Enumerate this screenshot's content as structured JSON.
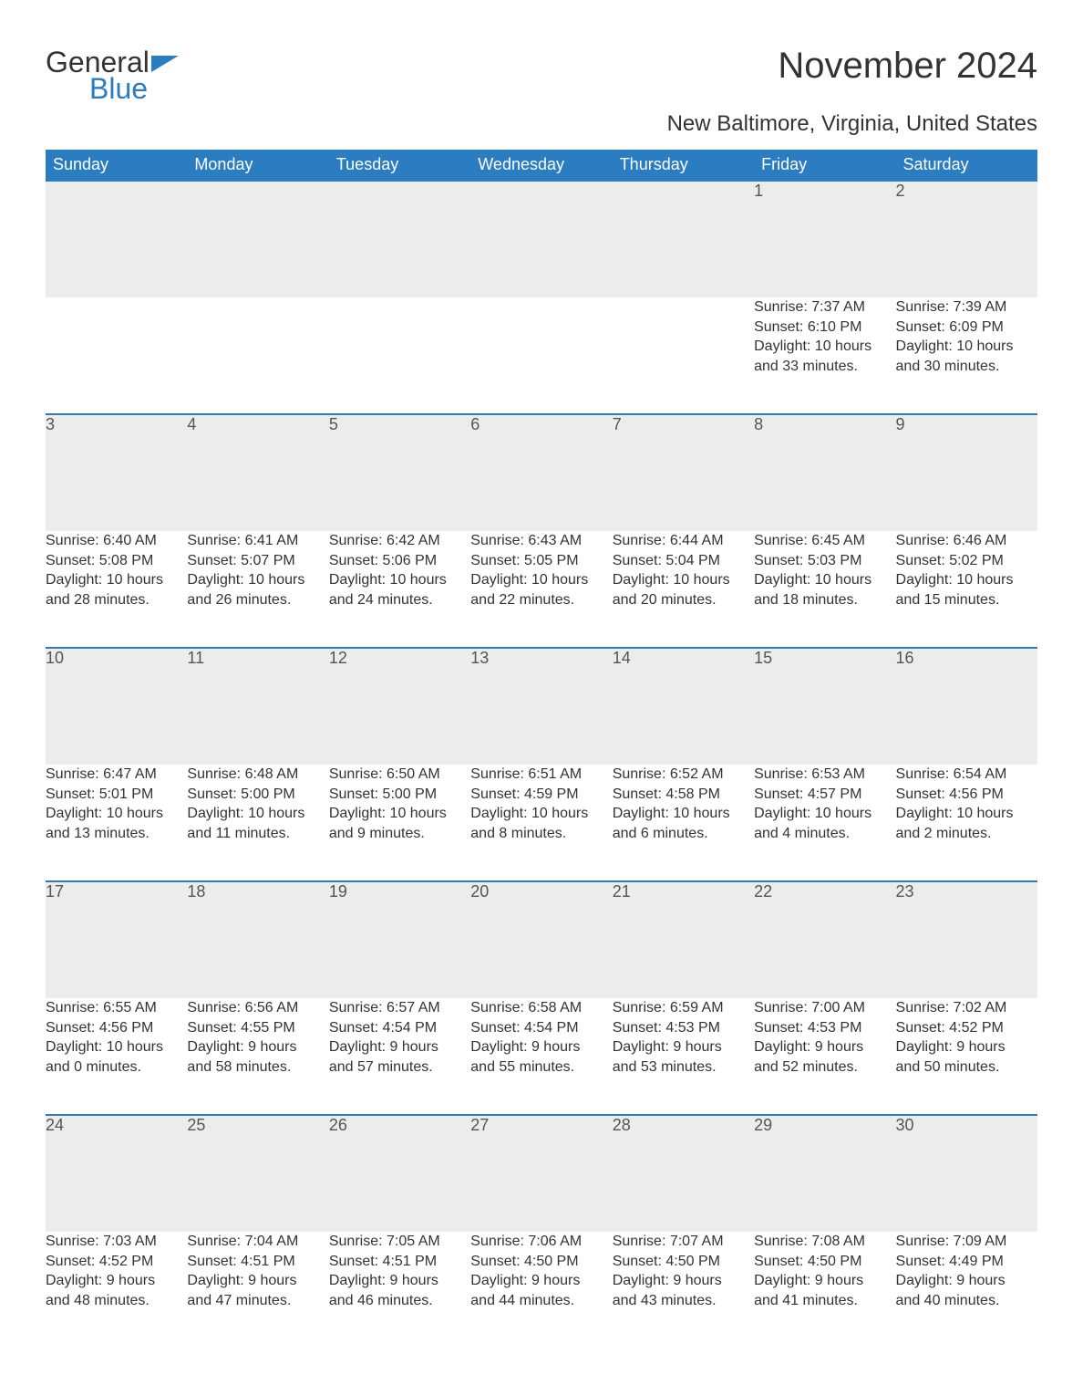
{
  "brand": {
    "part1": "General",
    "part2": "Blue"
  },
  "title": "November 2024",
  "subtitle": "New Baltimore, Virginia, United States",
  "colors": {
    "header_bg": "#2a7dc0",
    "header_fg": "#ffffff",
    "daynum_bg": "#ececec",
    "border_top": "#2a7dc0",
    "text": "#333333",
    "page_bg": "#ffffff"
  },
  "weekdays": [
    "Sunday",
    "Monday",
    "Tuesday",
    "Wednesday",
    "Thursday",
    "Friday",
    "Saturday"
  ],
  "weeks": [
    [
      null,
      null,
      null,
      null,
      null,
      {
        "n": "1",
        "sunrise": "7:37 AM",
        "sunset": "6:10 PM",
        "day_h": 10,
        "day_m": 33
      },
      {
        "n": "2",
        "sunrise": "7:39 AM",
        "sunset": "6:09 PM",
        "day_h": 10,
        "day_m": 30
      }
    ],
    [
      {
        "n": "3",
        "sunrise": "6:40 AM",
        "sunset": "5:08 PM",
        "day_h": 10,
        "day_m": 28
      },
      {
        "n": "4",
        "sunrise": "6:41 AM",
        "sunset": "5:07 PM",
        "day_h": 10,
        "day_m": 26
      },
      {
        "n": "5",
        "sunrise": "6:42 AM",
        "sunset": "5:06 PM",
        "day_h": 10,
        "day_m": 24
      },
      {
        "n": "6",
        "sunrise": "6:43 AM",
        "sunset": "5:05 PM",
        "day_h": 10,
        "day_m": 22
      },
      {
        "n": "7",
        "sunrise": "6:44 AM",
        "sunset": "5:04 PM",
        "day_h": 10,
        "day_m": 20
      },
      {
        "n": "8",
        "sunrise": "6:45 AM",
        "sunset": "5:03 PM",
        "day_h": 10,
        "day_m": 18
      },
      {
        "n": "9",
        "sunrise": "6:46 AM",
        "sunset": "5:02 PM",
        "day_h": 10,
        "day_m": 15
      }
    ],
    [
      {
        "n": "10",
        "sunrise": "6:47 AM",
        "sunset": "5:01 PM",
        "day_h": 10,
        "day_m": 13
      },
      {
        "n": "11",
        "sunrise": "6:48 AM",
        "sunset": "5:00 PM",
        "day_h": 10,
        "day_m": 11
      },
      {
        "n": "12",
        "sunrise": "6:50 AM",
        "sunset": "5:00 PM",
        "day_h": 10,
        "day_m": 9
      },
      {
        "n": "13",
        "sunrise": "6:51 AM",
        "sunset": "4:59 PM",
        "day_h": 10,
        "day_m": 8
      },
      {
        "n": "14",
        "sunrise": "6:52 AM",
        "sunset": "4:58 PM",
        "day_h": 10,
        "day_m": 6
      },
      {
        "n": "15",
        "sunrise": "6:53 AM",
        "sunset": "4:57 PM",
        "day_h": 10,
        "day_m": 4
      },
      {
        "n": "16",
        "sunrise": "6:54 AM",
        "sunset": "4:56 PM",
        "day_h": 10,
        "day_m": 2
      }
    ],
    [
      {
        "n": "17",
        "sunrise": "6:55 AM",
        "sunset": "4:56 PM",
        "day_h": 10,
        "day_m": 0
      },
      {
        "n": "18",
        "sunrise": "6:56 AM",
        "sunset": "4:55 PM",
        "day_h": 9,
        "day_m": 58
      },
      {
        "n": "19",
        "sunrise": "6:57 AM",
        "sunset": "4:54 PM",
        "day_h": 9,
        "day_m": 57
      },
      {
        "n": "20",
        "sunrise": "6:58 AM",
        "sunset": "4:54 PM",
        "day_h": 9,
        "day_m": 55
      },
      {
        "n": "21",
        "sunrise": "6:59 AM",
        "sunset": "4:53 PM",
        "day_h": 9,
        "day_m": 53
      },
      {
        "n": "22",
        "sunrise": "7:00 AM",
        "sunset": "4:53 PM",
        "day_h": 9,
        "day_m": 52
      },
      {
        "n": "23",
        "sunrise": "7:02 AM",
        "sunset": "4:52 PM",
        "day_h": 9,
        "day_m": 50
      }
    ],
    [
      {
        "n": "24",
        "sunrise": "7:03 AM",
        "sunset": "4:52 PM",
        "day_h": 9,
        "day_m": 48
      },
      {
        "n": "25",
        "sunrise": "7:04 AM",
        "sunset": "4:51 PM",
        "day_h": 9,
        "day_m": 47
      },
      {
        "n": "26",
        "sunrise": "7:05 AM",
        "sunset": "4:51 PM",
        "day_h": 9,
        "day_m": 46
      },
      {
        "n": "27",
        "sunrise": "7:06 AM",
        "sunset": "4:50 PM",
        "day_h": 9,
        "day_m": 44
      },
      {
        "n": "28",
        "sunrise": "7:07 AM",
        "sunset": "4:50 PM",
        "day_h": 9,
        "day_m": 43
      },
      {
        "n": "29",
        "sunrise": "7:08 AM",
        "sunset": "4:50 PM",
        "day_h": 9,
        "day_m": 41
      },
      {
        "n": "30",
        "sunrise": "7:09 AM",
        "sunset": "4:49 PM",
        "day_h": 9,
        "day_m": 40
      }
    ]
  ],
  "labels": {
    "sunrise_prefix": "Sunrise: ",
    "sunset_prefix": "Sunset: ",
    "daylight_prefix": "Daylight: ",
    "hours_word": " hours",
    "and_word": "and ",
    "minutes_word": " minutes."
  }
}
